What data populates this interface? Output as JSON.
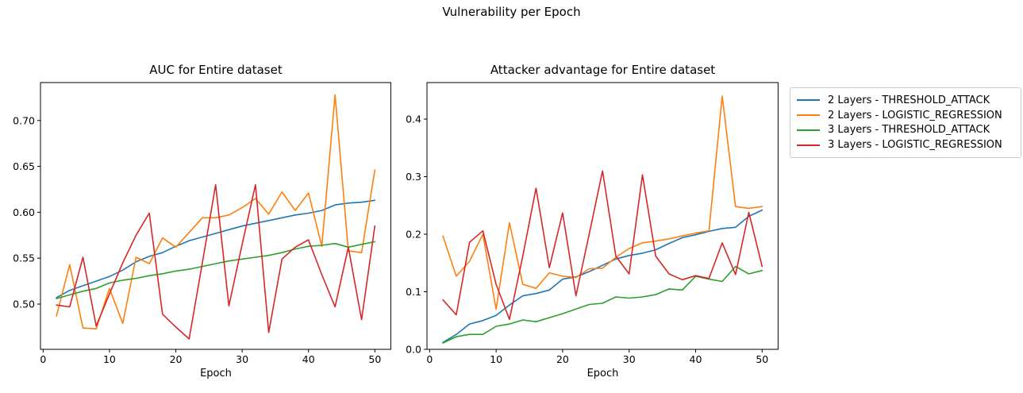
{
  "figure": {
    "suptitle": "Vulnerability per Epoch"
  },
  "colors": {
    "blue": "#1f77b4",
    "orange": "#ff7f0e",
    "green": "#2ca02c",
    "red": "#d62728"
  },
  "legend": {
    "entries": [
      {
        "label": "2 Layers - THRESHOLD_ATTACK",
        "color": "#1f77b4"
      },
      {
        "label": "2 Layers - LOGISTIC_REGRESSION",
        "color": "#ff7f0e"
      },
      {
        "label": "3 Layers - THRESHOLD_ATTACK",
        "color": "#2ca02c"
      },
      {
        "label": "3 Layers - LOGISTIC_REGRESSION",
        "color": "#d62728"
      }
    ]
  },
  "chart_data": [
    {
      "type": "line",
      "title": "AUC for Entire dataset",
      "xlabel": "Epoch",
      "x": [
        2,
        4,
        6,
        8,
        10,
        12,
        14,
        16,
        18,
        20,
        22,
        24,
        26,
        28,
        30,
        32,
        34,
        36,
        38,
        40,
        42,
        44,
        46,
        48,
        50
      ],
      "xticks": [
        0,
        10,
        20,
        30,
        40,
        50
      ],
      "xtick_labels": [
        "0",
        "10",
        "20",
        "30",
        "40",
        "50"
      ],
      "yticks": [
        0.5,
        0.55,
        0.6,
        0.65,
        0.7
      ],
      "ytick_labels": [
        "0.50",
        "0.55",
        "0.60",
        "0.65",
        "0.70"
      ],
      "xlim": [
        -0.4,
        52.4
      ],
      "ylim": [
        0.4507,
        0.7413
      ],
      "grid": false,
      "series": [
        {
          "name": "2 Layers - THRESHOLD_ATTACK",
          "color": "#1f77b4",
          "values": [
            0.507,
            0.515,
            0.52,
            0.525,
            0.53,
            0.537,
            0.546,
            0.552,
            0.556,
            0.563,
            0.569,
            0.573,
            0.577,
            0.581,
            0.585,
            0.588,
            0.591,
            0.594,
            0.597,
            0.599,
            0.602,
            0.608,
            0.61,
            0.611,
            0.613
          ]
        },
        {
          "name": "2 Layers - LOGISTIC_REGRESSION",
          "color": "#ff7f0e",
          "values": [
            0.487,
            0.543,
            0.474,
            0.473,
            0.517,
            0.479,
            0.551,
            0.544,
            0.572,
            0.562,
            0.578,
            0.594,
            0.594,
            0.597,
            0.605,
            0.615,
            0.598,
            0.622,
            0.602,
            0.621,
            0.563,
            0.728,
            0.558,
            0.556,
            0.646
          ]
        },
        {
          "name": "3 Layers - THRESHOLD_ATTACK",
          "color": "#2ca02c",
          "values": [
            0.506,
            0.51,
            0.514,
            0.517,
            0.523,
            0.526,
            0.528,
            0.531,
            0.533,
            0.536,
            0.538,
            0.541,
            0.544,
            0.547,
            0.549,
            0.551,
            0.553,
            0.556,
            0.56,
            0.563,
            0.564,
            0.566,
            0.562,
            0.565,
            0.568
          ]
        },
        {
          "name": "3 Layers - LOGISTIC_REGRESSION",
          "color": "#d62728",
          "values": [
            0.499,
            0.497,
            0.551,
            0.476,
            0.511,
            0.545,
            0.575,
            0.599,
            0.489,
            0.475,
            0.462,
            0.545,
            0.63,
            0.498,
            0.565,
            0.63,
            0.469,
            0.549,
            0.562,
            0.57,
            0.532,
            0.497,
            0.562,
            0.483,
            0.585
          ]
        }
      ]
    },
    {
      "type": "line",
      "title": "Attacker advantage for Entire dataset",
      "xlabel": "Epoch",
      "x": [
        2,
        4,
        6,
        8,
        10,
        12,
        14,
        16,
        18,
        20,
        22,
        24,
        26,
        28,
        30,
        32,
        34,
        36,
        38,
        40,
        42,
        44,
        46,
        48,
        50
      ],
      "xticks": [
        0,
        10,
        20,
        30,
        40,
        50
      ],
      "xtick_labels": [
        "0",
        "10",
        "20",
        "30",
        "40",
        "50"
      ],
      "yticks": [
        0.0,
        0.1,
        0.2,
        0.3,
        0.4
      ],
      "ytick_labels": [
        "0.0",
        "0.1",
        "0.2",
        "0.3",
        "0.4"
      ],
      "xlim": [
        -0.4,
        52.4
      ],
      "ylim": [
        0.0,
        0.4635
      ],
      "grid": false,
      "series": [
        {
          "name": "2 Layers - THRESHOLD_ATTACK",
          "color": "#1f77b4",
          "values": [
            0.012,
            0.026,
            0.044,
            0.05,
            0.059,
            0.077,
            0.093,
            0.097,
            0.103,
            0.122,
            0.126,
            0.135,
            0.146,
            0.157,
            0.163,
            0.167,
            0.173,
            0.184,
            0.194,
            0.199,
            0.205,
            0.21,
            0.212,
            0.231,
            0.242
          ]
        },
        {
          "name": "2 Layers - LOGISTIC_REGRESSION",
          "color": "#ff7f0e",
          "values": [
            0.197,
            0.127,
            0.153,
            0.2,
            0.07,
            0.22,
            0.113,
            0.106,
            0.133,
            0.127,
            0.125,
            0.14,
            0.141,
            0.16,
            0.175,
            0.185,
            0.188,
            0.192,
            0.197,
            0.202,
            0.206,
            0.44,
            0.248,
            0.245,
            0.248
          ]
        },
        {
          "name": "3 Layers - THRESHOLD_ATTACK",
          "color": "#2ca02c",
          "values": [
            0.011,
            0.022,
            0.026,
            0.026,
            0.04,
            0.044,
            0.051,
            0.048,
            0.055,
            0.062,
            0.07,
            0.078,
            0.08,
            0.091,
            0.089,
            0.091,
            0.095,
            0.105,
            0.103,
            0.127,
            0.122,
            0.118,
            0.144,
            0.131,
            0.137
          ]
        },
        {
          "name": "3 Layers - LOGISTIC_REGRESSION",
          "color": "#d62728",
          "values": [
            0.086,
            0.06,
            0.186,
            0.206,
            0.113,
            0.052,
            0.162,
            0.28,
            0.142,
            0.237,
            0.093,
            0.2,
            0.31,
            0.162,
            0.131,
            0.303,
            0.162,
            0.131,
            0.121,
            0.128,
            0.123,
            0.185,
            0.13,
            0.238,
            0.144
          ]
        }
      ]
    }
  ]
}
